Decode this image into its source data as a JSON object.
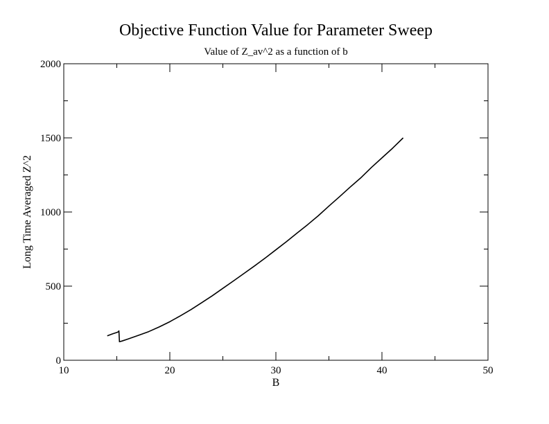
{
  "chart_data": {
    "type": "line",
    "title": "Objective Function Value for Parameter Sweep",
    "subtitle": "Value of Z_av^2 as a function of b",
    "xlabel": "B",
    "ylabel": "Long Time Averaged Z^2",
    "xlim": [
      10,
      50
    ],
    "ylim": [
      0,
      2000
    ],
    "x_ticks": [
      10,
      20,
      30,
      40,
      50
    ],
    "y_ticks": [
      0,
      500,
      1000,
      1500,
      2000
    ],
    "x_tick_labels": [
      "10",
      "20",
      "30",
      "40",
      "50"
    ],
    "y_tick_labels": [
      "0",
      "500",
      "1000",
      "1500",
      "2000"
    ],
    "grid": false,
    "legend": "none",
    "line_color": "#000000",
    "series": [
      {
        "x": [
          14.1,
          14.6,
          15.1,
          15.2,
          15.25,
          15.5,
          16,
          17,
          18,
          19,
          20,
          21,
          22,
          23,
          24,
          25,
          26,
          27,
          28,
          29,
          30,
          31,
          32,
          33,
          34,
          35,
          36,
          37,
          38,
          39,
          40,
          41,
          42
        ],
        "y": [
          165,
          178,
          190,
          198,
          125,
          130,
          142,
          167,
          193,
          225,
          260,
          300,
          342,
          388,
          435,
          485,
          535,
          586,
          637,
          690,
          745,
          800,
          858,
          915,
          975,
          1040,
          1103,
          1168,
          1230,
          1300,
          1365,
          1430,
          1500
        ]
      }
    ]
  }
}
